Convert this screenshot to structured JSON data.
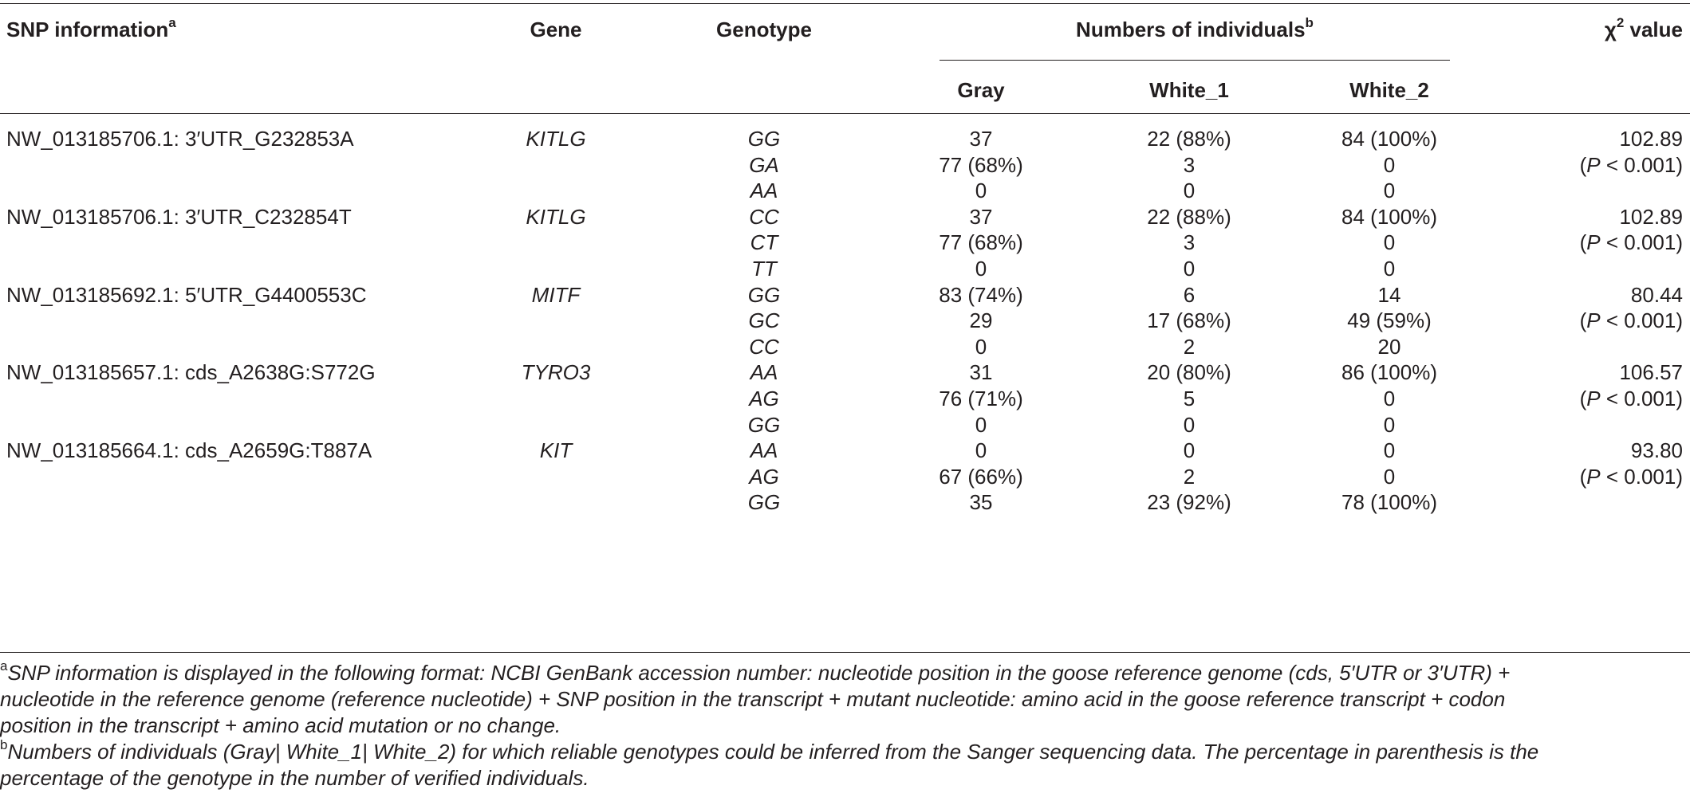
{
  "header": {
    "snp": "SNP information",
    "snp_sup": "a",
    "gene": "Gene",
    "genotype": "Genotype",
    "numbers": "Numbers of individuals",
    "numbers_sup": "b",
    "chi_prefix": "χ",
    "chi_sup": "2",
    "chi_suffix": " value",
    "gray": "Gray",
    "white1": "White_1",
    "white2": "White_2"
  },
  "rows": [
    {
      "snp": "NW_013185706.1: 3′UTR_G232853A",
      "gene": "KITLG",
      "genotype": "GG",
      "gray": "37",
      "white1": "22 (88%)",
      "white2": "84 (100%)",
      "chi": "102.89"
    },
    {
      "snp": "",
      "gene": "",
      "genotype": "GA",
      "gray": "77 (68%)",
      "white1": "3",
      "white2": "0",
      "chi": "(P < 0.001)"
    },
    {
      "snp": "",
      "gene": "",
      "genotype": "AA",
      "gray": "0",
      "white1": "0",
      "white2": "0",
      "chi": ""
    },
    {
      "snp": "NW_013185706.1: 3′UTR_C232854T",
      "gene": "KITLG",
      "genotype": "CC",
      "gray": "37",
      "white1": "22 (88%)",
      "white2": "84 (100%)",
      "chi": "102.89"
    },
    {
      "snp": "",
      "gene": "",
      "genotype": "CT",
      "gray": "77 (68%)",
      "white1": "3",
      "white2": "0",
      "chi": "(P < 0.001)"
    },
    {
      "snp": "",
      "gene": "",
      "genotype": "TT",
      "gray": "0",
      "white1": "0",
      "white2": "0",
      "chi": ""
    },
    {
      "snp": "NW_013185692.1: 5′UTR_G4400553C",
      "gene": "MITF",
      "genotype": "GG",
      "gray": "83 (74%)",
      "white1": "6",
      "white2": "14",
      "chi": "80.44"
    },
    {
      "snp": "",
      "gene": "",
      "genotype": "GC",
      "gray": "29",
      "white1": "17 (68%)",
      "white2": "49 (59%)",
      "chi": "(P < 0.001)"
    },
    {
      "snp": "",
      "gene": "",
      "genotype": "CC",
      "gray": "0",
      "white1": "2",
      "white2": "20",
      "chi": ""
    },
    {
      "snp": "NW_013185657.1: cds_A2638G:S772G",
      "gene": "TYRO3",
      "genotype": "AA",
      "gray": "31",
      "white1": "20 (80%)",
      "white2": "86 (100%)",
      "chi": "106.57"
    },
    {
      "snp": "",
      "gene": "",
      "genotype": "AG",
      "gray": "76 (71%)",
      "white1": "5",
      "white2": "0",
      "chi": "(P < 0.001)"
    },
    {
      "snp": "",
      "gene": "",
      "genotype": "GG",
      "gray": "0",
      "white1": "0",
      "white2": "0",
      "chi": ""
    },
    {
      "snp": "NW_013185664.1: cds_A2659G:T887A",
      "gene": "KIT",
      "genotype": "AA",
      "gray": "0",
      "white1": "0",
      "white2": "0",
      "chi": "93.80"
    },
    {
      "snp": "",
      "gene": "",
      "genotype": "AG",
      "gray": "67 (66%)",
      "white1": "2",
      "white2": "0",
      "chi": "(P < 0.001)"
    },
    {
      "snp": "",
      "gene": "",
      "genotype": "GG",
      "gray": "35",
      "white1": "23 (92%)",
      "white2": "78 (100%)",
      "chi": ""
    }
  ],
  "footnotes": [
    {
      "mark": "a",
      "lines": [
        "SNP information is displayed in the following format: NCBI GenBank accession number: nucleotide position in the goose reference genome (cds, 5′UTR or 3′UTR) +",
        "nucleotide in the reference genome (reference nucleotide) + SNP position in the transcript + mutant nucleotide: amino acid in the goose reference transcript + codon",
        "position in the transcript + amino acid mutation or no change."
      ]
    },
    {
      "mark": "b",
      "lines": [
        "Numbers of individuals (Gray| White_1| White_2) for which reliable genotypes could be inferred from the Sanger sequencing data. The percentage in parenthesis is the",
        "percentage of the genotype in the number of verified individuals."
      ]
    }
  ]
}
